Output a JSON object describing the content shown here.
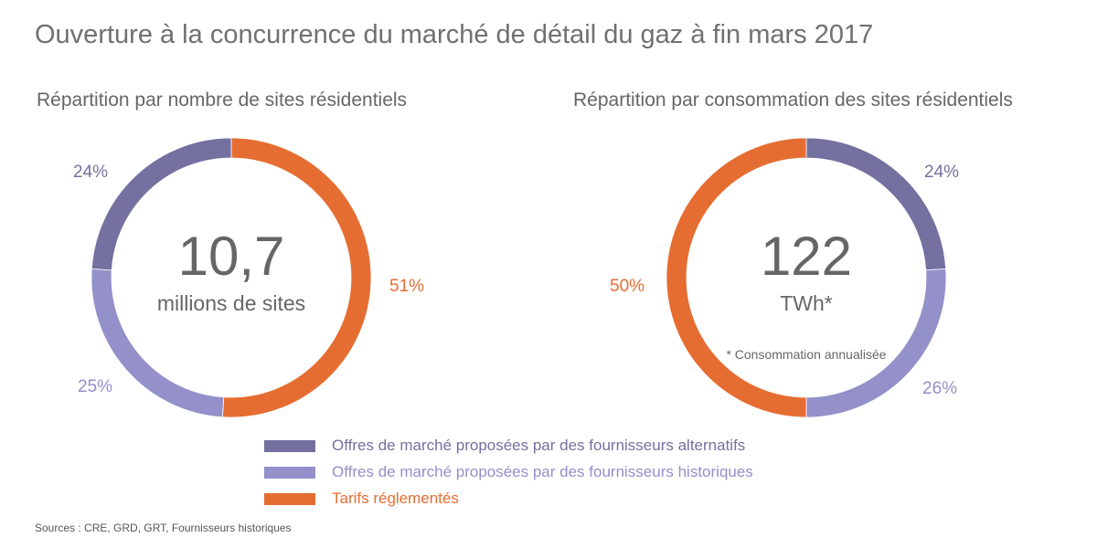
{
  "title": "Ouverture à la concurrence du marché de détail du gaz à fin mars 2017",
  "colors": {
    "alternatifs": "#7470a0",
    "historiques": "#9390ca",
    "tarifs": "#e66d32"
  },
  "chart_data": [
    {
      "type": "pie",
      "title": "Répartition par nombre de sites résidentiels",
      "center_value": "10,7",
      "center_unit": "millions de sites",
      "slices": [
        {
          "name": "Tarifs réglementés",
          "value": 51,
          "label": "51%",
          "color": "#e66d32"
        },
        {
          "name": "Offres de marché proposées par des fournisseurs historiques",
          "value": 25,
          "label": "25%",
          "color": "#9390ca"
        },
        {
          "name": "Offres de marché proposées par des fournisseurs alternatifs",
          "value": 24,
          "label": "24%",
          "color": "#7470a0"
        }
      ]
    },
    {
      "type": "pie",
      "title": "Répartition par consommation des sites résidentiels",
      "center_value": "122",
      "center_unit": "TWh*",
      "note": "* Consommation annualisée",
      "slices": [
        {
          "name": "Offres de marché proposées par des fournisseurs alternatifs",
          "value": 24,
          "label": "24%",
          "color": "#7470a0"
        },
        {
          "name": "Offres de marché proposées par des fournisseurs historiques",
          "value": 26,
          "label": "26%",
          "color": "#9390ca"
        },
        {
          "name": "Tarifs réglementés",
          "value": 50,
          "label": "50%",
          "color": "#e66d32"
        }
      ]
    }
  ],
  "legend": [
    {
      "label": "Offres de marché proposées par des fournisseurs alternatifs",
      "color": "#7470a0"
    },
    {
      "label": "Offres de marché proposées par des fournisseurs historiques",
      "color": "#9390ca"
    },
    {
      "label": "Tarifs réglementés",
      "color": "#e66d32"
    }
  ],
  "source": "Sources : CRE, GRD, GRT, Fournisseurs historiques"
}
